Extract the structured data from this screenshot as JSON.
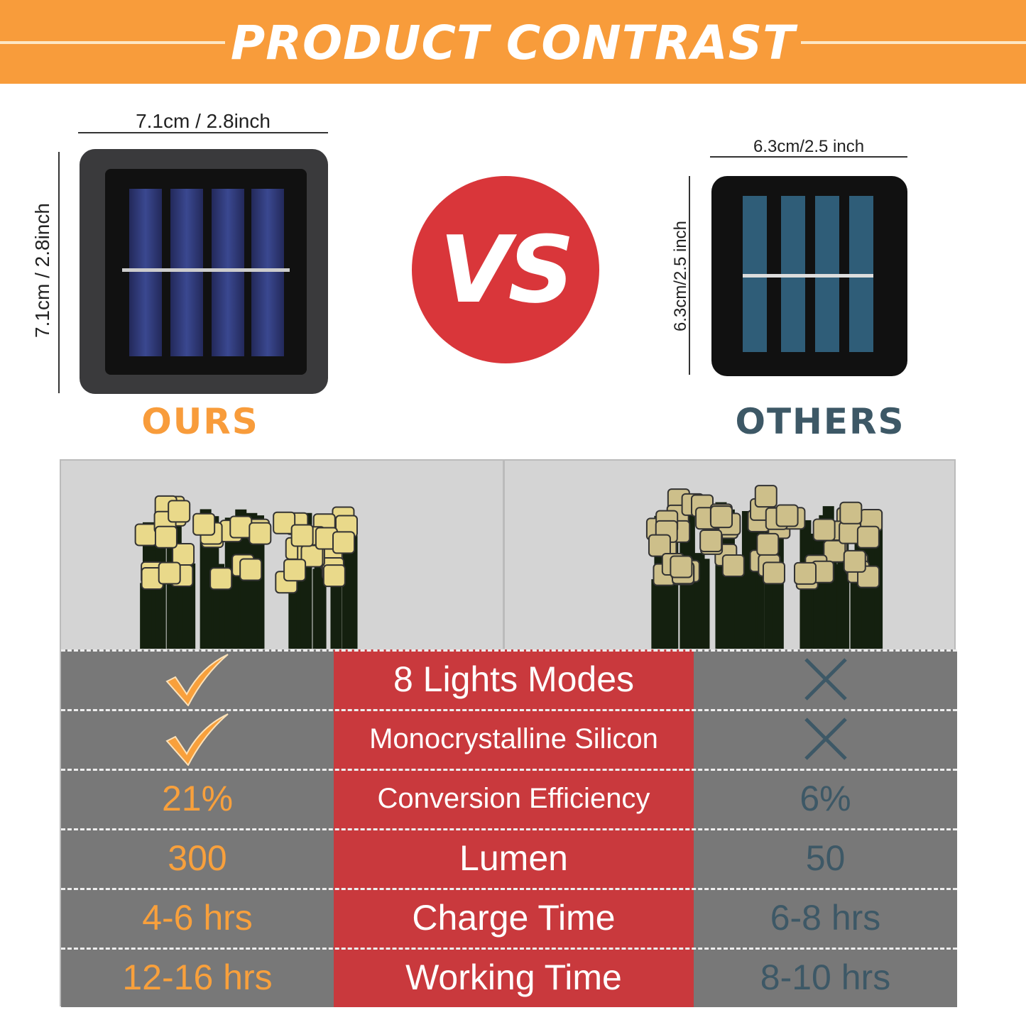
{
  "header": {
    "title": "PRODUCT CONTRAST"
  },
  "ours": {
    "label": "OURS",
    "width": "7.1cm / 2.8inch",
    "height": "7.1cm / 2.8inch"
  },
  "others": {
    "label": "OTHERS",
    "width": "6.3cm/2.5 inch",
    "height": "6.3cm/2.5 inch"
  },
  "vs": "VS",
  "colors": {
    "orange": "#f89c3b",
    "red": "#c9393d",
    "gray": "#787878",
    "teal": "#3d5866"
  },
  "rows": [
    {
      "ours": "check-icon",
      "feature": "8 Lights Modes",
      "others": "cross-icon"
    },
    {
      "ours": "check-icon",
      "feature": "Monocrystalline Silicon",
      "others": "cross-icon"
    },
    {
      "ours": "21%",
      "feature": "Conversion Efficiency",
      "others": "6%"
    },
    {
      "ours": "300",
      "feature": "Lumen",
      "others": "50"
    },
    {
      "ours": "4-6 hrs",
      "feature": "Charge Time",
      "others": "6-8 hrs"
    },
    {
      "ours": "12-16 hrs",
      "feature": "Working Time",
      "others": "8-10 hrs"
    }
  ]
}
